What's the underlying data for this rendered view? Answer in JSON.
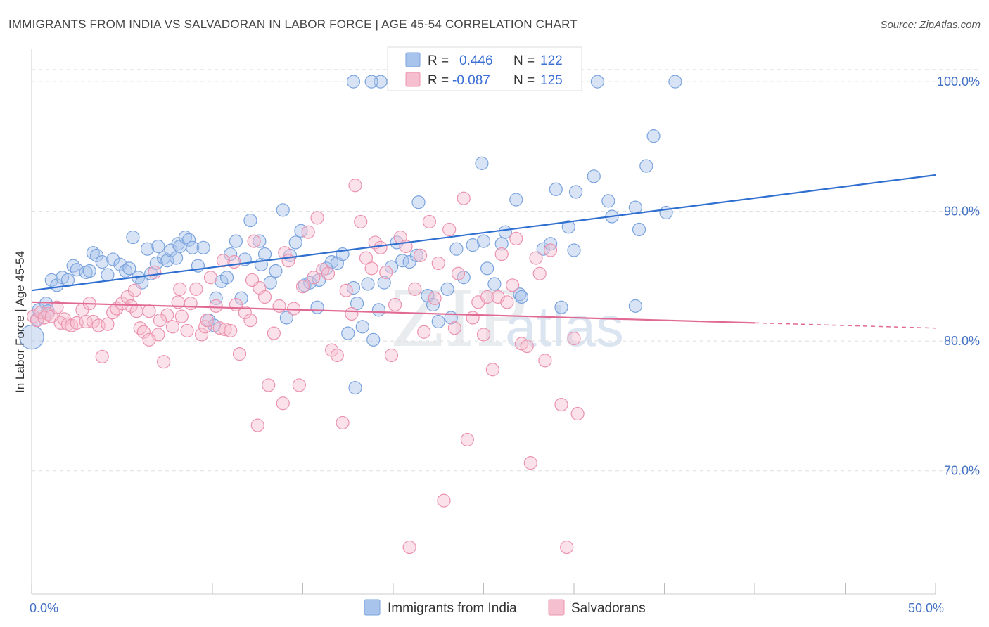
{
  "title": "IMMIGRANTS FROM INDIA VS SALVADORAN IN LABOR FORCE | AGE 45-54 CORRELATION CHART",
  "source": "Source: ZipAtlas.com",
  "watermark": {
    "zip": "ZIP",
    "atlas": "atlas"
  },
  "legend_box": {
    "rows": [
      {
        "r_label": "R =",
        "r_value": "0.446",
        "n_label": "N =",
        "n_value": "122",
        "color": "#a9c4ec",
        "stroke": "#7aa3de"
      },
      {
        "r_label": "R =",
        "r_value": "-0.087",
        "n_label": "N =",
        "n_value": "125",
        "color": "#f6bfd0",
        "stroke": "#eb93ae"
      }
    ]
  },
  "chart_data": {
    "type": "scatter",
    "title": "IMMIGRANTS FROM INDIA VS SALVADORAN IN LABOR FORCE | AGE 45-54 CORRELATION CHART",
    "xlabel": "",
    "ylabel": "In Labor Force | Age 45-54",
    "xlim": [
      0,
      50
    ],
    "ylim": [
      60.5,
      102.5
    ],
    "x_tick_labels": [
      {
        "value": 0,
        "label": "0.0%"
      },
      {
        "value": 50,
        "label": "50.0%"
      }
    ],
    "y_tick_labels": [
      {
        "value": 70,
        "label": "70.0%"
      },
      {
        "value": 80,
        "label": "80.0%"
      },
      {
        "value": 90,
        "label": "90.0%"
      },
      {
        "value": 100,
        "label": "100.0%"
      }
    ],
    "grid": true,
    "legend_placement": "top-center",
    "series": [
      {
        "name": "Immigrants from India",
        "color": "#a9c4ec",
        "stroke": "#7aa3de",
        "trend_color": "#2f6fd0",
        "trend": {
          "x0": 0,
          "y0": 83.9,
          "x1": 50,
          "y1": 92.8
        },
        "points": [
          [
            0,
            80.3
          ],
          [
            0.3,
            81.7
          ],
          [
            0.4,
            82.4
          ],
          [
            0.8,
            82.9
          ],
          [
            0.9,
            82.3
          ],
          [
            1.1,
            84.7
          ],
          [
            1.4,
            84.3
          ],
          [
            1.7,
            84.9
          ],
          [
            2.0,
            84.7
          ],
          [
            2.3,
            85.8
          ],
          [
            2.5,
            85.5
          ],
          [
            3.0,
            85.3
          ],
          [
            3.2,
            85.4
          ],
          [
            3.4,
            86.8
          ],
          [
            3.6,
            86.6
          ],
          [
            3.9,
            86.1
          ],
          [
            4.2,
            85.1
          ],
          [
            4.5,
            86.3
          ],
          [
            4.9,
            85.9
          ],
          [
            5.2,
            85.4
          ],
          [
            5.4,
            85.6
          ],
          [
            5.6,
            88.0
          ],
          [
            5.9,
            84.9
          ],
          [
            6.1,
            84.5
          ],
          [
            6.4,
            87.1
          ],
          [
            6.6,
            85.2
          ],
          [
            6.9,
            86.0
          ],
          [
            7.0,
            87.3
          ],
          [
            7.3,
            86.4
          ],
          [
            7.5,
            86.2
          ],
          [
            7.7,
            87.0
          ],
          [
            8.0,
            86.4
          ],
          [
            8.1,
            87.5
          ],
          [
            8.2,
            87.3
          ],
          [
            8.5,
            88.0
          ],
          [
            8.7,
            87.8
          ],
          [
            8.9,
            87.2
          ],
          [
            9.2,
            85.8
          ],
          [
            9.5,
            87.2
          ],
          [
            9.8,
            81.6
          ],
          [
            10.2,
            83.3
          ],
          [
            10.5,
            84.6
          ],
          [
            10.8,
            84.9
          ],
          [
            11.0,
            86.7
          ],
          [
            11.3,
            87.7
          ],
          [
            11.6,
            83.3
          ],
          [
            11.8,
            86.3
          ],
          [
            12.1,
            89.3
          ],
          [
            12.6,
            87.7
          ],
          [
            12.7,
            85.9
          ],
          [
            12.9,
            86.7
          ],
          [
            13.2,
            84.5
          ],
          [
            13.5,
            85.4
          ],
          [
            13.9,
            90.1
          ],
          [
            14.1,
            81.8
          ],
          [
            14.3,
            86.6
          ],
          [
            14.6,
            87.6
          ],
          [
            14.9,
            88.5
          ],
          [
            15.1,
            84.3
          ],
          [
            15.4,
            84.5
          ],
          [
            15.8,
            82.6
          ],
          [
            15.9,
            84.7
          ],
          [
            16.3,
            85.6
          ],
          [
            16.6,
            86.1
          ],
          [
            16.9,
            86.0
          ],
          [
            17.2,
            86.7
          ],
          [
            17.5,
            80.6
          ],
          [
            17.8,
            84.1
          ],
          [
            18.0,
            82.9
          ],
          [
            18.3,
            81.1
          ],
          [
            18.6,
            84.4
          ],
          [
            18.9,
            80.1
          ],
          [
            19.2,
            82.4
          ],
          [
            19.5,
            84.5
          ],
          [
            19.9,
            85.7
          ],
          [
            20.2,
            87.6
          ],
          [
            20.5,
            86.2
          ],
          [
            20.9,
            86.1
          ],
          [
            21.3,
            86.6
          ],
          [
            21.4,
            90.7
          ],
          [
            21.9,
            83.5
          ],
          [
            22.2,
            82.8
          ],
          [
            22.5,
            81.5
          ],
          [
            23.0,
            84.0
          ],
          [
            23.2,
            81.8
          ],
          [
            23.5,
            87.1
          ],
          [
            23.9,
            84.9
          ],
          [
            24.4,
            87.4
          ],
          [
            25.0,
            87.7
          ],
          [
            24.9,
            93.7
          ],
          [
            25.2,
            85.6
          ],
          [
            25.6,
            84.4
          ],
          [
            26.0,
            87.5
          ],
          [
            26.2,
            88.4
          ],
          [
            26.8,
            90.9
          ],
          [
            27.0,
            83.6
          ],
          [
            27.1,
            83.4
          ],
          [
            28.3,
            87.1
          ],
          [
            28.7,
            87.5
          ],
          [
            29.0,
            91.7
          ],
          [
            29.3,
            82.6
          ],
          [
            29.7,
            88.8
          ],
          [
            30.0,
            87.0
          ],
          [
            30.1,
            91.5
          ],
          [
            31.1,
            92.7
          ],
          [
            31.9,
            90.8
          ],
          [
            32.1,
            89.6
          ],
          [
            33.4,
            90.3
          ],
          [
            33.6,
            88.6
          ],
          [
            34.0,
            93.5
          ],
          [
            34.4,
            95.8
          ],
          [
            35.1,
            89.9
          ],
          [
            19.3,
            100.0
          ],
          [
            17.8,
            100.0
          ],
          [
            18.8,
            100.0
          ],
          [
            20.0,
            100.0
          ],
          [
            29.8,
            100.0
          ],
          [
            31.3,
            100.0
          ],
          [
            35.6,
            100.0
          ],
          [
            33.4,
            82.7
          ],
          [
            17.9,
            76.4
          ],
          [
            10.1,
            81.2
          ]
        ]
      },
      {
        "name": "Salvadorans",
        "color": "#f6bfd0",
        "stroke": "#eb93ae",
        "trend_color": "#e06a93",
        "trend": {
          "x0": 0,
          "y0": 83.0,
          "x1": 40,
          "y1": 81.4
        },
        "trend_dashed_extension": {
          "x0": 40,
          "y0": 81.4,
          "x1": 50,
          "y1": 81.0
        },
        "points": [
          [
            0.1,
            81.9
          ],
          [
            0.3,
            81.6
          ],
          [
            0.5,
            82.2
          ],
          [
            0.7,
            81.8
          ],
          [
            0.9,
            82.1
          ],
          [
            1.1,
            81.9
          ],
          [
            1.4,
            82.6
          ],
          [
            1.6,
            81.4
          ],
          [
            1.8,
            81.7
          ],
          [
            2.0,
            81.3
          ],
          [
            2.2,
            81.2
          ],
          [
            2.5,
            81.4
          ],
          [
            2.8,
            82.4
          ],
          [
            3.0,
            81.5
          ],
          [
            3.2,
            82.9
          ],
          [
            3.4,
            81.5
          ],
          [
            3.7,
            81.2
          ],
          [
            3.9,
            78.8
          ],
          [
            4.2,
            81.3
          ],
          [
            4.5,
            82.2
          ],
          [
            4.7,
            82.5
          ],
          [
            5.0,
            82.9
          ],
          [
            5.3,
            83.4
          ],
          [
            5.5,
            82.7
          ],
          [
            5.7,
            83.9
          ],
          [
            6.0,
            81.0
          ],
          [
            6.2,
            80.7
          ],
          [
            6.5,
            82.3
          ],
          [
            6.8,
            85.3
          ],
          [
            7.0,
            80.5
          ],
          [
            7.3,
            78.4
          ],
          [
            7.5,
            82.0
          ],
          [
            7.8,
            81.1
          ],
          [
            8.1,
            83.0
          ],
          [
            8.3,
            81.9
          ],
          [
            8.6,
            80.8
          ],
          [
            8.8,
            82.9
          ],
          [
            9.1,
            84.0
          ],
          [
            9.4,
            80.5
          ],
          [
            9.6,
            81.1
          ],
          [
            9.9,
            84.9
          ],
          [
            10.2,
            82.7
          ],
          [
            10.4,
            81.0
          ],
          [
            10.7,
            80.9
          ],
          [
            11.0,
            80.8
          ],
          [
            11.2,
            86.1
          ],
          [
            11.5,
            79.0
          ],
          [
            11.8,
            82.2
          ],
          [
            12.1,
            81.6
          ],
          [
            12.3,
            87.7
          ],
          [
            12.6,
            84.1
          ],
          [
            12.9,
            83.4
          ],
          [
            13.1,
            76.6
          ],
          [
            13.4,
            80.6
          ],
          [
            13.7,
            82.7
          ],
          [
            14.0,
            86.8
          ],
          [
            14.2,
            86.2
          ],
          [
            14.5,
            82.5
          ],
          [
            14.8,
            76.6
          ],
          [
            15.0,
            84.2
          ],
          [
            15.3,
            88.4
          ],
          [
            15.6,
            84.9
          ],
          [
            15.8,
            89.5
          ],
          [
            16.1,
            85.5
          ],
          [
            16.4,
            85.2
          ],
          [
            16.6,
            79.3
          ],
          [
            16.9,
            78.9
          ],
          [
            17.2,
            73.7
          ],
          [
            17.4,
            83.9
          ],
          [
            17.7,
            82.1
          ],
          [
            17.9,
            92.0
          ],
          [
            18.2,
            89.2
          ],
          [
            18.5,
            86.4
          ],
          [
            18.8,
            85.6
          ],
          [
            19.0,
            87.6
          ],
          [
            19.3,
            87.2
          ],
          [
            19.6,
            85.3
          ],
          [
            19.9,
            78.9
          ],
          [
            20.1,
            82.8
          ],
          [
            20.4,
            88.0
          ],
          [
            20.7,
            87.3
          ],
          [
            20.9,
            64.1
          ],
          [
            21.2,
            84.0
          ],
          [
            21.5,
            86.6
          ],
          [
            21.7,
            80.7
          ],
          [
            22.0,
            89.2
          ],
          [
            22.3,
            83.3
          ],
          [
            22.5,
            86.0
          ],
          [
            22.8,
            67.7
          ],
          [
            23.1,
            88.6
          ],
          [
            23.4,
            81.0
          ],
          [
            23.6,
            85.2
          ],
          [
            23.9,
            91.0
          ],
          [
            24.1,
            72.4
          ],
          [
            24.4,
            81.8
          ],
          [
            24.7,
            83.0
          ],
          [
            25.0,
            80.5
          ],
          [
            25.2,
            83.4
          ],
          [
            25.5,
            77.8
          ],
          [
            25.8,
            83.4
          ],
          [
            26.0,
            86.7
          ],
          [
            26.3,
            83.0
          ],
          [
            26.6,
            84.3
          ],
          [
            26.8,
            87.9
          ],
          [
            27.1,
            79.8
          ],
          [
            27.4,
            79.6
          ],
          [
            27.6,
            70.6
          ],
          [
            27.9,
            86.4
          ],
          [
            28.1,
            85.2
          ],
          [
            28.4,
            78.5
          ],
          [
            28.7,
            87.0
          ],
          [
            29.3,
            75.1
          ],
          [
            29.6,
            64.1
          ],
          [
            30.0,
            80.2
          ],
          [
            30.2,
            74.4
          ],
          [
            12.5,
            73.5
          ],
          [
            13.9,
            75.2
          ],
          [
            10.6,
            86.2
          ],
          [
            5.8,
            82.3
          ],
          [
            8.2,
            84.0
          ],
          [
            7.1,
            81.6
          ],
          [
            6.5,
            80.1
          ],
          [
            9.7,
            81.6
          ],
          [
            11.3,
            82.8
          ],
          [
            12.2,
            84.7
          ]
        ]
      }
    ]
  },
  "bottom_legend": [
    {
      "label": "Immigrants from India",
      "color": "#a9c4ec",
      "stroke": "#7aa3de"
    },
    {
      "label": "Salvadorans",
      "color": "#f6bfd0",
      "stroke": "#eb93ae"
    }
  ]
}
